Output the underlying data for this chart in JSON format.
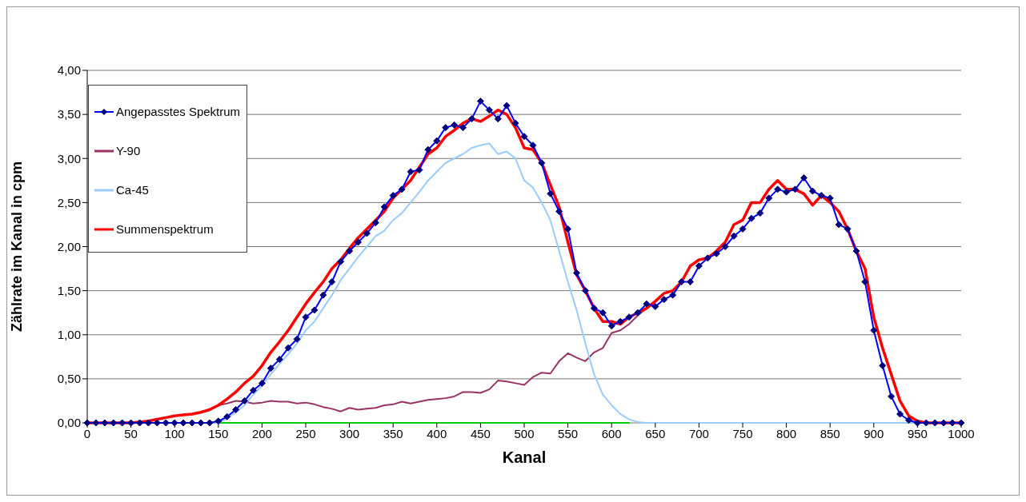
{
  "chart_data": {
    "type": "line",
    "xlabel": "Kanal",
    "ylabel": "Zählrate im Kanal in cpm",
    "x": [
      0,
      10,
      20,
      30,
      40,
      50,
      60,
      70,
      80,
      90,
      100,
      110,
      120,
      130,
      140,
      150,
      160,
      170,
      180,
      190,
      200,
      210,
      220,
      230,
      240,
      250,
      260,
      270,
      280,
      290,
      300,
      310,
      320,
      330,
      340,
      350,
      360,
      370,
      380,
      390,
      400,
      410,
      420,
      430,
      440,
      450,
      460,
      470,
      480,
      490,
      500,
      510,
      520,
      530,
      540,
      550,
      560,
      570,
      580,
      590,
      600,
      610,
      620,
      630,
      640,
      650,
      660,
      670,
      680,
      690,
      700,
      710,
      720,
      730,
      740,
      750,
      760,
      770,
      780,
      790,
      800,
      810,
      820,
      830,
      840,
      850,
      860,
      870,
      880,
      890,
      900,
      910,
      920,
      930,
      940,
      950,
      960,
      970,
      980,
      990,
      1000
    ],
    "series": [
      {
        "name": "Angepasstes Spektrum",
        "color": "#0000ff",
        "marker": "diamond",
        "values": [
          0,
          0,
          0,
          0,
          0,
          0,
          0,
          0,
          0,
          0,
          0,
          0,
          0,
          0,
          0,
          0.02,
          0.07,
          0.15,
          0.25,
          0.37,
          0.45,
          0.62,
          0.72,
          0.85,
          0.95,
          1.2,
          1.28,
          1.45,
          1.6,
          1.83,
          1.95,
          2.05,
          2.15,
          2.27,
          2.45,
          2.58,
          2.65,
          2.85,
          2.87,
          3.1,
          3.2,
          3.35,
          3.38,
          3.35,
          3.45,
          3.65,
          3.55,
          3.45,
          3.6,
          3.4,
          3.25,
          3.15,
          2.95,
          2.6,
          2.4,
          2.2,
          1.7,
          1.5,
          1.3,
          1.25,
          1.1,
          1.15,
          1.2,
          1.25,
          1.35,
          1.32,
          1.4,
          1.45,
          1.6,
          1.6,
          1.78,
          1.87,
          1.92,
          2.0,
          2.12,
          2.2,
          2.32,
          2.38,
          2.55,
          2.65,
          2.62,
          2.65,
          2.78,
          2.63,
          2.58,
          2.55,
          2.25,
          2.2,
          1.95,
          1.6,
          1.05,
          0.65,
          0.3,
          0.1,
          0.03,
          0,
          0,
          0,
          0,
          0,
          0
        ]
      },
      {
        "name": "Y-90",
        "color": "#993366",
        "marker": "none",
        "values": [
          0,
          0,
          0,
          0,
          0,
          0,
          0.01,
          0.02,
          0.04,
          0.06,
          0.08,
          0.09,
          0.1,
          0.12,
          0.15,
          0.2,
          0.22,
          0.25,
          0.24,
          0.22,
          0.23,
          0.25,
          0.24,
          0.24,
          0.22,
          0.23,
          0.21,
          0.18,
          0.16,
          0.13,
          0.17,
          0.15,
          0.16,
          0.17,
          0.2,
          0.21,
          0.24,
          0.22,
          0.24,
          0.26,
          0.27,
          0.28,
          0.3,
          0.35,
          0.35,
          0.34,
          0.38,
          0.48,
          0.47,
          0.45,
          0.43,
          0.52,
          0.57,
          0.56,
          0.7,
          0.79,
          0.74,
          0.7,
          0.8,
          0.85,
          1.02,
          1.05,
          1.12,
          1.22,
          1.3,
          1.38,
          1.47,
          1.5,
          1.6,
          1.78,
          1.85,
          1.87,
          1.95,
          2.05,
          2.25,
          2.3,
          2.5,
          2.5,
          2.65,
          2.75,
          2.65,
          2.65,
          2.6,
          2.47,
          2.58,
          2.5,
          2.4,
          2.2,
          1.95,
          1.75,
          1.2,
          0.85,
          0.55,
          0.25,
          0.08,
          0.02,
          0,
          0,
          0,
          0,
          0
        ]
      },
      {
        "name": "Ca-45",
        "color": "#99ccff",
        "marker": "none",
        "values": [
          0,
          0,
          0,
          0,
          0,
          0,
          0,
          0,
          0,
          0,
          0,
          0,
          0,
          0,
          0,
          0,
          0.05,
          0.12,
          0.2,
          0.32,
          0.42,
          0.55,
          0.67,
          0.78,
          0.9,
          1.05,
          1.15,
          1.3,
          1.45,
          1.62,
          1.75,
          1.88,
          2.0,
          2.12,
          2.18,
          2.3,
          2.38,
          2.5,
          2.62,
          2.75,
          2.85,
          2.95,
          3.0,
          3.05,
          3.12,
          3.15,
          3.17,
          3.05,
          3.08,
          3.0,
          2.75,
          2.67,
          2.5,
          2.3,
          1.95,
          1.6,
          1.28,
          0.9,
          0.55,
          0.32,
          0.2,
          0.1,
          0.04,
          0.01,
          0,
          0,
          0,
          0,
          0,
          0,
          0,
          0,
          0,
          0,
          0,
          0,
          0,
          0,
          0,
          0,
          0,
          0,
          0,
          0,
          0,
          0,
          0,
          0,
          0,
          0,
          0,
          0,
          0,
          0,
          0,
          0,
          0,
          0,
          0,
          0,
          0
        ]
      },
      {
        "name": "Summenspektrum",
        "color": "#ff0000",
        "marker": "none",
        "values": [
          0,
          0,
          0,
          0,
          0,
          0,
          0.01,
          0.02,
          0.04,
          0.06,
          0.08,
          0.09,
          0.1,
          0.12,
          0.15,
          0.2,
          0.27,
          0.35,
          0.45,
          0.53,
          0.65,
          0.8,
          0.92,
          1.05,
          1.2,
          1.35,
          1.48,
          1.6,
          1.75,
          1.85,
          1.98,
          2.1,
          2.2,
          2.3,
          2.4,
          2.55,
          2.65,
          2.75,
          2.9,
          3.05,
          3.12,
          3.25,
          3.32,
          3.4,
          3.45,
          3.42,
          3.48,
          3.55,
          3.5,
          3.35,
          3.12,
          3.1,
          2.95,
          2.7,
          2.45,
          2.05,
          1.68,
          1.5,
          1.3,
          1.15,
          1.15,
          1.12,
          1.2,
          1.25,
          1.3,
          1.38,
          1.47,
          1.5,
          1.6,
          1.78,
          1.85,
          1.87,
          1.95,
          2.05,
          2.25,
          2.3,
          2.5,
          2.5,
          2.65,
          2.75,
          2.65,
          2.65,
          2.6,
          2.47,
          2.58,
          2.5,
          2.4,
          2.2,
          1.95,
          1.75,
          1.2,
          0.85,
          0.55,
          0.25,
          0.08,
          0.02,
          0,
          0,
          0,
          0,
          0
        ]
      },
      {
        "color": "#00cc00",
        "marker": "none",
        "values": [
          null,
          null,
          null,
          null,
          null,
          null,
          null,
          null,
          null,
          null,
          null,
          null,
          null,
          null,
          null,
          0,
          0,
          0,
          0,
          0,
          0,
          0,
          0,
          0,
          0,
          0,
          0,
          0,
          0,
          0,
          0,
          0,
          0,
          0,
          0,
          0,
          0,
          0,
          0,
          0,
          0,
          0,
          0,
          0,
          0,
          0,
          0,
          0,
          0,
          0,
          0,
          0,
          0,
          0,
          0,
          0,
          0,
          0,
          0,
          0,
          0,
          0,
          0,
          null,
          null,
          null,
          null,
          null,
          null,
          null,
          null,
          null,
          null,
          null,
          null,
          null,
          null,
          null,
          null,
          null,
          null,
          null,
          null,
          null,
          null,
          null,
          null,
          null,
          null,
          null,
          null,
          null,
          null,
          null,
          null,
          null,
          null,
          null,
          null,
          null,
          null
        ]
      }
    ],
    "xlim": [
      0,
      1000
    ],
    "xticks": [
      0,
      50,
      100,
      150,
      200,
      250,
      300,
      350,
      400,
      450,
      500,
      550,
      600,
      650,
      700,
      750,
      800,
      850,
      900,
      950,
      1000
    ],
    "ylim": [
      0,
      4
    ],
    "yticks": [
      {
        "value": 0,
        "label": "0,00"
      },
      {
        "value": 0.5,
        "label": "0,50"
      },
      {
        "value": 1,
        "label": "1,00"
      },
      {
        "value": 1.5,
        "label": "1,50"
      },
      {
        "value": 2,
        "label": "2,00"
      },
      {
        "value": 2.5,
        "label": "2,50"
      },
      {
        "value": 3,
        "label": "3,00"
      },
      {
        "value": 3.5,
        "label": "3,50"
      },
      {
        "value": 4,
        "label": "4,00"
      }
    ],
    "grid": "y",
    "legend": "top left"
  }
}
